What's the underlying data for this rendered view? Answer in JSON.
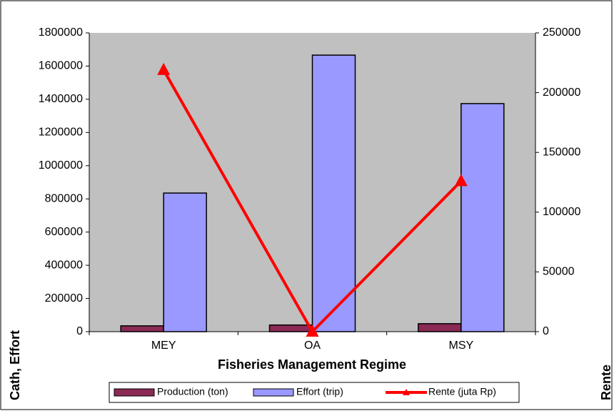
{
  "chart_data": {
    "type": "bar-line",
    "x_label": "Fisheries Management Regime",
    "y_label": "Cath, Effort",
    "y2_label": "Rente",
    "categories": [
      "MEY",
      "OA",
      "MSY"
    ],
    "series": [
      {
        "name": "Production (ton)",
        "type": "bar",
        "color": "#8b2a55",
        "values": [
          35000,
          40000,
          48000
        ]
      },
      {
        "name": "Effort (trip)",
        "type": "bar",
        "color": "#9999ff",
        "values": [
          835000,
          1666000,
          1374000
        ]
      },
      {
        "name": "Rente (juta Rp)",
        "type": "line",
        "axis": "y2",
        "color": "#ff0000",
        "values": [
          219000,
          0,
          126000
        ]
      }
    ],
    "ylim": [
      0,
      1800000
    ],
    "yticks": [
      0,
      200000,
      400000,
      600000,
      800000,
      1000000,
      1200000,
      1400000,
      1600000,
      1800000
    ],
    "y2lim": [
      0,
      250000
    ],
    "y2ticks": [
      0,
      50000,
      100000,
      150000,
      200000,
      250000
    ],
    "legend": "bottom"
  }
}
